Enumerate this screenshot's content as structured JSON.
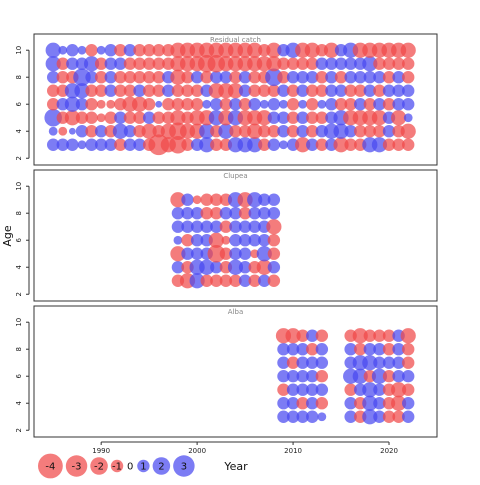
{
  "chart_data": {
    "type": "scatter",
    "subtype": "bubble-residuals",
    "ylabel": "Age",
    "xlabel": "Year",
    "xlim": [
      1983,
      2025
    ],
    "x_ticks": [
      1990,
      2000,
      2010,
      2020
    ],
    "ylim": [
      1.5,
      11.2
    ],
    "y_ticks": [
      2,
      4,
      6,
      8,
      10
    ],
    "colors": {
      "positive": "#4a4af0",
      "negative": "#f04a4a",
      "frame": "#333333"
    },
    "panels": [
      {
        "title": "Residual catch",
        "years": [
          1985,
          1986,
          1987,
          1988,
          1989,
          1990,
          1991,
          1992,
          1993,
          1994,
          1995,
          1996,
          1997,
          1998,
          1999,
          2000,
          2001,
          2002,
          2003,
          2004,
          2005,
          2006,
          2007,
          2008,
          2009,
          2010,
          2011,
          2012,
          2013,
          2014,
          2015,
          2016,
          2017,
          2018,
          2019,
          2020,
          2021,
          2022
        ],
        "ages": [
          3,
          4,
          5,
          6,
          7,
          8,
          9,
          10
        ],
        "residuals": {
          "3": [
            1.0,
            1.0,
            1.0,
            0.5,
            1.0,
            1.0,
            1.0,
            -1.0,
            1.0,
            1.0,
            -1.0,
            -2.8,
            -1.5,
            -2.0,
            -1.0,
            1.0,
            1.5,
            -1.0,
            -1.0,
            1.5,
            1.5,
            1.5,
            -1.0,
            1.0,
            0.5,
            1.0,
            -1.5,
            1.0,
            -1.0,
            1.0,
            -1.5,
            -1.0,
            -1.0,
            1.5,
            1.5,
            -1.0,
            -1.0,
            -1.0
          ],
          "4": [
            0.5,
            -0.5,
            0.3,
            1.0,
            -1.0,
            1.0,
            -1.0,
            1.5,
            1.0,
            -1.0,
            -1.5,
            -1.0,
            -1.5,
            -2.0,
            -1.5,
            -1.5,
            1.5,
            -1.0,
            1.5,
            -1.0,
            -1.0,
            -1.5,
            -1.0,
            -1.0,
            1.0,
            -1.0,
            1.0,
            -1.0,
            1.0,
            1.5,
            1.5,
            1.0,
            -1.0,
            -1.0,
            -1.0,
            1.0,
            -1.0,
            -1.5
          ],
          "5": [
            2.0,
            -1.0,
            -1.5,
            -1.0,
            -1.0,
            -0.5,
            -1.0,
            1.0,
            -1.0,
            -1.0,
            1.0,
            -1.0,
            -1.0,
            -1.5,
            -1.0,
            -1.5,
            -1.5,
            1.5,
            -1.5,
            1.5,
            -1.5,
            -1.5,
            -1.5,
            1.0,
            1.0,
            -1.0,
            1.0,
            -1.0,
            -1.0,
            1.0,
            1.5,
            -1.5,
            -1.5,
            -1.5,
            -1.5,
            1.0,
            -1.5,
            0.5
          ],
          "6": [
            -1.0,
            1.0,
            1.5,
            1.0,
            -1.0,
            -0.5,
            -0.5,
            -1.0,
            -1.5,
            -1.5,
            -1.0,
            0.3,
            -1.0,
            -1.0,
            -1.0,
            -1.0,
            0.5,
            1.0,
            -1.0,
            1.0,
            -1.0,
            1.0,
            0.5,
            1.0,
            0.5,
            -1.0,
            0.5,
            -1.0,
            0.5,
            1.0,
            -1.0,
            -1.0,
            1.0,
            -1.0,
            1.0,
            -1.0,
            1.0,
            1.0
          ],
          "7": [
            -1.0,
            -1.0,
            1.5,
            1.5,
            -1.0,
            -1.0,
            1.0,
            -1.0,
            -1.0,
            1.0,
            -1.0,
            -1.0,
            1.0,
            -1.0,
            -1.0,
            -1.0,
            1.0,
            -1.5,
            -1.5,
            -1.5,
            1.0,
            -1.0,
            -1.0,
            -1.0,
            1.0,
            -1.0,
            1.0,
            -1.0,
            -1.0,
            1.0,
            1.0,
            -1.0,
            -1.0,
            1.0,
            -1.0,
            1.0,
            1.0,
            1.0
          ],
          "8": [
            1.0,
            -1.0,
            -1.0,
            2.0,
            1.0,
            -1.0,
            1.0,
            -1.0,
            -1.0,
            -1.0,
            -1.0,
            -1.0,
            1.0,
            -1.5,
            -1.0,
            1.0,
            -1.0,
            1.0,
            1.0,
            -1.0,
            1.0,
            -1.0,
            -1.0,
            2.0,
            -1.0,
            1.0,
            1.0,
            1.0,
            -1.0,
            1.0,
            -1.0,
            1.0,
            1.0,
            1.0,
            1.0,
            -1.0,
            1.0,
            -1.0
          ],
          "9": [
            1.5,
            -1.0,
            1.0,
            1.0,
            1.5,
            -1.0,
            1.0,
            1.0,
            -1.0,
            -1.0,
            -1.0,
            -1.0,
            -1.0,
            -1.5,
            -1.5,
            -1.5,
            -2.0,
            -2.0,
            -1.5,
            -1.5,
            -1.5,
            -1.5,
            -1.5,
            -1.5,
            -1.0,
            -1.0,
            -1.0,
            -1.0,
            1.0,
            1.0,
            1.0,
            1.0,
            1.0,
            1.5,
            -1.0,
            -1.0,
            -1.0,
            -1.0
          ],
          "10": [
            1.5,
            0.5,
            1.0,
            0.5,
            -1.0,
            0.5,
            1.0,
            -1.0,
            1.0,
            -1.0,
            -1.0,
            -1.0,
            -1.0,
            -1.5,
            -1.5,
            -1.5,
            -1.5,
            -1.5,
            -1.5,
            -1.5,
            -1.5,
            -1.5,
            -1.0,
            -1.5,
            1.0,
            1.5,
            -1.5,
            -1.5,
            -1.0,
            -1.5,
            1.0,
            1.5,
            -1.5,
            -1.5,
            -1.5,
            -1.5,
            -1.5,
            -1.5
          ]
        }
      },
      {
        "title": "Clupea",
        "years": [
          1998,
          1999,
          2000,
          2001,
          2002,
          2003,
          2004,
          2005,
          2006,
          2007,
          2008
        ],
        "ages": [
          3,
          4,
          5,
          6,
          7,
          8,
          9
        ],
        "residuals": {
          "3": [
            -1.0,
            -1.5,
            1.5,
            -1.0,
            -1.0,
            -1.0,
            -1.0,
            1.0,
            -1.0,
            1.0,
            -1.0
          ],
          "4": [
            1.0,
            -1.0,
            1.5,
            1.5,
            1.0,
            -1.0,
            1.5,
            1.0,
            -1.0,
            -1.5,
            1.0
          ],
          "5": [
            -1.5,
            1.0,
            1.0,
            1.0,
            -2.0,
            -1.0,
            1.0,
            1.0,
            -0.5,
            1.5,
            -1.0
          ],
          "6": [
            0.5,
            -1.0,
            1.0,
            1.0,
            -1.5,
            -0.5,
            1.0,
            1.0,
            1.0,
            1.0,
            -1.0
          ],
          "7": [
            1.0,
            1.0,
            1.0,
            1.0,
            1.0,
            -1.0,
            1.0,
            1.0,
            1.0,
            1.0,
            -1.5
          ],
          "8": [
            1.0,
            1.0,
            1.0,
            -1.0,
            -1.0,
            1.0,
            1.0,
            -1.0,
            1.0,
            1.0,
            1.0
          ],
          "9": [
            -1.5,
            1.0,
            -0.5,
            -1.0,
            -1.0,
            -1.0,
            1.5,
            -1.5,
            1.5,
            1.0,
            1.0
          ]
        }
      },
      {
        "title": "Alba",
        "years": [
          2009,
          2010,
          2011,
          2012,
          2013,
          2016,
          2017,
          2018,
          2019,
          2020,
          2021,
          2022
        ],
        "ages": [
          3,
          4,
          5,
          6,
          7,
          8,
          9
        ],
        "residuals": {
          "3": [
            1.0,
            1.0,
            1.0,
            1.0,
            0.5,
            1.0,
            -1.0,
            1.5,
            1.0,
            -1.0,
            -1.0,
            1.0
          ],
          "4": [
            1.0,
            1.0,
            -1.0,
            1.0,
            -1.0,
            1.0,
            -1.0,
            1.5,
            1.0,
            -1.0,
            -1.5,
            1.0
          ],
          "5": [
            -1.0,
            1.0,
            1.0,
            1.0,
            1.0,
            -1.0,
            1.0,
            1.5,
            1.0,
            -1.0,
            -1.5,
            -1.0
          ],
          "6": [
            1.0,
            1.0,
            1.0,
            1.0,
            -1.0,
            1.5,
            1.5,
            -1.0,
            1.5,
            -1.0,
            1.0,
            1.0
          ],
          "7": [
            1.0,
            -1.0,
            1.0,
            1.0,
            1.0,
            1.0,
            1.5,
            1.5,
            1.0,
            1.0,
            1.0,
            -1.0
          ],
          "8": [
            1.0,
            1.0,
            1.0,
            -1.0,
            1.0,
            1.0,
            -1.0,
            1.0,
            1.0,
            -1.0,
            1.0,
            -1.0
          ],
          "9": [
            -1.5,
            -1.5,
            -1.0,
            1.0,
            -1.0,
            -1.0,
            -1.5,
            -1.0,
            -1.0,
            -1.0,
            1.0,
            -1.5
          ]
        }
      }
    ],
    "legend": {
      "placement": "bottom-left",
      "entries": [
        {
          "label": "-4",
          "value": -4
        },
        {
          "label": "-3",
          "value": -3
        },
        {
          "label": "-2",
          "value": -2
        },
        {
          "label": "-1",
          "value": -1
        },
        {
          "label": "0",
          "value": 0
        },
        {
          "label": "1",
          "value": 1
        },
        {
          "label": "2",
          "value": 2
        },
        {
          "label": "3",
          "value": 3
        }
      ]
    }
  }
}
